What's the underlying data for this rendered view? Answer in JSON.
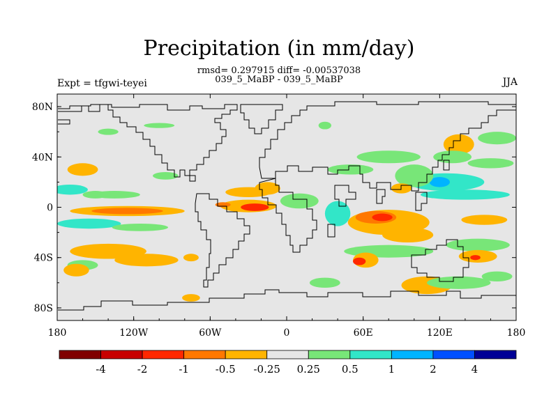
{
  "chart_data": {
    "type": "heatmap",
    "title": "Precipitation (in mm/day)",
    "stats_line": "rmsd= 0.297915 diff= -0.00537038",
    "subtitle": "039_5_MaBP - 039_5_MaBP",
    "left_label": "Expt = tfgwi-teyei",
    "right_label": "JJA",
    "x_ticks": [
      "180",
      "120W",
      "60W",
      "0",
      "60E",
      "120E",
      "180"
    ],
    "y_ticks": [
      "80N",
      "40N",
      "0",
      "40S",
      "80S"
    ],
    "xlim": [
      -180,
      180
    ],
    "ylim": [
      -90,
      90
    ],
    "colorbar": {
      "labels": [
        "-4",
        "-2",
        "-1",
        "-0.5",
        "-0.25",
        "0.25",
        "0.5",
        "1",
        "2",
        "4"
      ],
      "colors": [
        "#800000",
        "#c80000",
        "#ff2800",
        "#ff7800",
        "#ffb400",
        "#e6e6e6",
        "#78e678",
        "#32e6c8",
        "#00b4ff",
        "#0050ff",
        "#000096"
      ]
    },
    "background_color": "#e6e6e6",
    "anomalies": [
      {
        "lon": -160,
        "lat": 30,
        "rx": 12,
        "ry": 5,
        "level": 4
      },
      {
        "lon": -170,
        "lat": 14,
        "rx": 14,
        "ry": 4,
        "level": 7
      },
      {
        "lon": -150,
        "lat": 10,
        "rx": 10,
        "ry": 3,
        "level": 6
      },
      {
        "lon": -135,
        "lat": 10,
        "rx": 20,
        "ry": 3,
        "level": 6
      },
      {
        "lon": -125,
        "lat": -3,
        "rx": 45,
        "ry": 4,
        "level": 4
      },
      {
        "lon": -125,
        "lat": -3,
        "rx": 28,
        "ry": 2.5,
        "level": 3
      },
      {
        "lon": -155,
        "lat": -13,
        "rx": 25,
        "ry": 4,
        "level": 7
      },
      {
        "lon": -115,
        "lat": -16,
        "rx": 22,
        "ry": 3,
        "level": 6
      },
      {
        "lon": -140,
        "lat": -35,
        "rx": 30,
        "ry": 6,
        "level": 4
      },
      {
        "lon": -110,
        "lat": -42,
        "rx": 25,
        "ry": 5,
        "level": 4
      },
      {
        "lon": -160,
        "lat": -46,
        "rx": 12,
        "ry": 4,
        "level": 6
      },
      {
        "lon": -95,
        "lat": 25,
        "rx": 10,
        "ry": 3,
        "level": 6
      },
      {
        "lon": -140,
        "lat": 60,
        "rx": 8,
        "ry": 2.5,
        "level": 6
      },
      {
        "lon": -30,
        "lat": 12,
        "rx": 18,
        "ry": 4,
        "level": 4
      },
      {
        "lon": -15,
        "lat": 15,
        "rx": 10,
        "ry": 5,
        "level": 4
      },
      {
        "lon": -30,
        "lat": 1,
        "rx": 22,
        "ry": 5,
        "level": 4
      },
      {
        "lon": -25,
        "lat": 0,
        "rx": 11,
        "ry": 3,
        "level": 2
      },
      {
        "lon": -50,
        "lat": 2,
        "rx": 6,
        "ry": 2,
        "level": 3
      },
      {
        "lon": 10,
        "lat": 5,
        "rx": 15,
        "ry": 6,
        "level": 6
      },
      {
        "lon": 40,
        "lat": -5,
        "rx": 10,
        "ry": 10,
        "level": 7
      },
      {
        "lon": 80,
        "lat": -12,
        "rx": 32,
        "ry": 10,
        "level": 4
      },
      {
        "lon": 70,
        "lat": -8,
        "rx": 16,
        "ry": 5,
        "level": 3
      },
      {
        "lon": 75,
        "lat": -8,
        "rx": 8,
        "ry": 3,
        "level": 2
      },
      {
        "lon": 95,
        "lat": -22,
        "rx": 20,
        "ry": 6,
        "level": 4
      },
      {
        "lon": 80,
        "lat": -35,
        "rx": 35,
        "ry": 5,
        "level": 6
      },
      {
        "lon": 62,
        "lat": -42,
        "rx": 10,
        "ry": 6,
        "level": 4
      },
      {
        "lon": 57,
        "lat": -43,
        "rx": 5,
        "ry": 3,
        "level": 2
      },
      {
        "lon": 150,
        "lat": -30,
        "rx": 25,
        "ry": 5,
        "level": 6
      },
      {
        "lon": 150,
        "lat": -39,
        "rx": 15,
        "ry": 5,
        "level": 4
      },
      {
        "lon": 148,
        "lat": -40,
        "rx": 4,
        "ry": 2,
        "level": 2
      },
      {
        "lon": 110,
        "lat": -62,
        "rx": 20,
        "ry": 7,
        "level": 4
      },
      {
        "lon": 125,
        "lat": 20,
        "rx": 30,
        "ry": 7,
        "level": 7
      },
      {
        "lon": 120,
        "lat": 20,
        "rx": 8,
        "ry": 4,
        "level": 8
      },
      {
        "lon": 100,
        "lat": 25,
        "rx": 15,
        "ry": 9,
        "level": 6
      },
      {
        "lon": 90,
        "lat": 15,
        "rx": 8,
        "ry": 4,
        "level": 4
      },
      {
        "lon": 140,
        "lat": 10,
        "rx": 35,
        "ry": 4,
        "level": 7
      },
      {
        "lon": 160,
        "lat": 35,
        "rx": 18,
        "ry": 4,
        "level": 6
      },
      {
        "lon": 135,
        "lat": 50,
        "rx": 12,
        "ry": 8,
        "level": 4
      },
      {
        "lon": 130,
        "lat": 40,
        "rx": 15,
        "ry": 5,
        "level": 6
      },
      {
        "lon": 80,
        "lat": 40,
        "rx": 25,
        "ry": 5,
        "level": 6
      },
      {
        "lon": 50,
        "lat": 30,
        "rx": 18,
        "ry": 4,
        "level": 6
      },
      {
        "lon": 165,
        "lat": 55,
        "rx": 15,
        "ry": 5,
        "level": 6
      },
      {
        "lon": 135,
        "lat": -60,
        "rx": 25,
        "ry": 5,
        "level": 6
      },
      {
        "lon": 165,
        "lat": -55,
        "rx": 12,
        "ry": 4,
        "level": 6
      },
      {
        "lon": 155,
        "lat": -10,
        "rx": 18,
        "ry": 4,
        "level": 4
      },
      {
        "lon": 30,
        "lat": 65,
        "rx": 5,
        "ry": 3,
        "level": 6
      },
      {
        "lon": -75,
        "lat": -40,
        "rx": 6,
        "ry": 3,
        "level": 4
      },
      {
        "lon": -75,
        "lat": -72,
        "rx": 7,
        "ry": 3,
        "level": 4
      },
      {
        "lon": -165,
        "lat": -50,
        "rx": 10,
        "ry": 5,
        "level": 4
      },
      {
        "lon": 30,
        "lat": -60,
        "rx": 12,
        "ry": 4,
        "level": 6
      },
      {
        "lon": -100,
        "lat": 65,
        "rx": 12,
        "ry": 2,
        "level": 6
      }
    ]
  }
}
